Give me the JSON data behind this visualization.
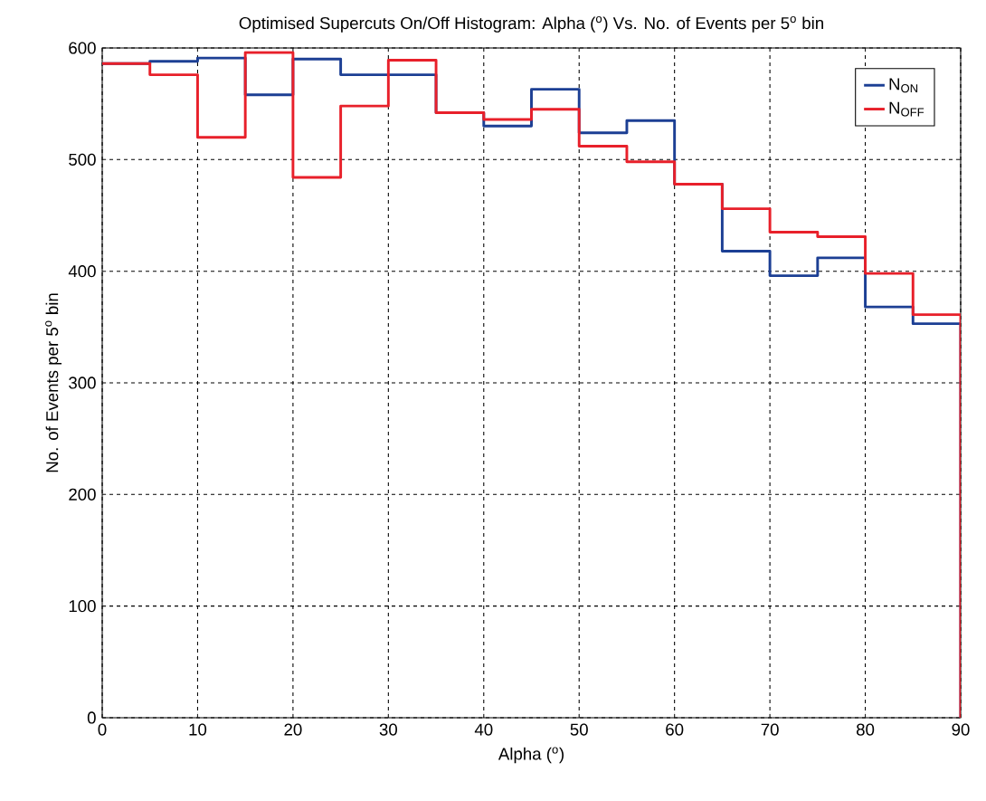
{
  "chart_data": {
    "type": "histogram",
    "title": "Optimised Supercuts On/Off Histogram: Alpha ($^{o}$) Vs. No. of Events per 5$^{o}$ bin",
    "xlabel": "Alpha ($^{o}$)",
    "ylabel": "No. of Events per 5$^{o}$ bin",
    "bins": [
      0,
      5,
      10,
      15,
      20,
      25,
      30,
      35,
      40,
      45,
      50,
      55,
      60,
      65,
      70,
      75,
      80,
      85,
      90
    ],
    "series": [
      {
        "name": "N$_{ON}$",
        "color": "#1c3f94",
        "values": [
          586,
          588,
          591,
          558,
          590,
          576,
          576,
          542,
          530,
          563,
          524,
          535,
          478,
          418,
          396,
          412,
          368,
          353
        ]
      },
      {
        "name": "N$_{OFF}$",
        "color": "#e8202a",
        "values": [
          586,
          576,
          520,
          596,
          484,
          548,
          589,
          542,
          536,
          545,
          512,
          498,
          478,
          456,
          435,
          431,
          398,
          361
        ]
      }
    ],
    "xlim": [
      0,
      90
    ],
    "ylim": [
      0,
      600
    ],
    "xticks": [
      0,
      10,
      20,
      30,
      40,
      50,
      60,
      70,
      80,
      90
    ],
    "yticks": [
      0,
      100,
      200,
      300,
      400,
      500,
      600
    ],
    "grid": true,
    "legend": "top right",
    "line_style": "solid"
  }
}
